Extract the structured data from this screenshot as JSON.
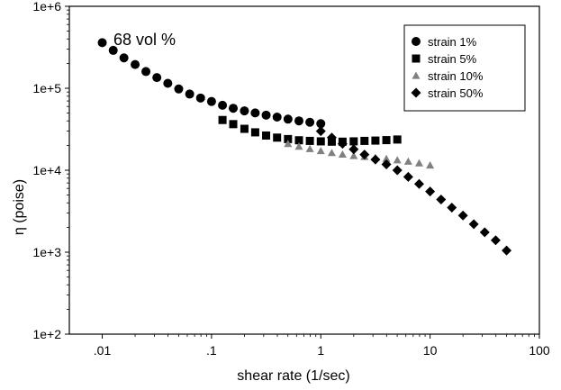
{
  "chart_data": {
    "type": "scatter",
    "xscale": "log",
    "yscale": "log",
    "xlim": [
      0.005,
      100
    ],
    "ylim": [
      100,
      1000000
    ],
    "xlabel": "shear rate (1/sec)",
    "ylabel": "η  (poise)",
    "annotation": "68  vol  %",
    "x_ticks": [
      0.01,
      0.1,
      1,
      10,
      100
    ],
    "x_tick_labels": [
      ".01",
      ".1",
      "1",
      "10",
      "100"
    ],
    "y_ticks": [
      100,
      1000,
      10000,
      100000,
      1000000
    ],
    "y_tick_labels": [
      "1e+2",
      "1e+3",
      "1e+4",
      "1e+5",
      "1e+6"
    ],
    "grid": false,
    "legend_position": "top-right",
    "series": [
      {
        "name": "strain 1%",
        "marker": "circle",
        "color": "#000000",
        "x": [
          0.01,
          0.0126,
          0.0158,
          0.02,
          0.0251,
          0.0316,
          0.0398,
          0.0501,
          0.0631,
          0.0794,
          0.1,
          0.126,
          0.158,
          0.2,
          0.251,
          0.316,
          0.398,
          0.501,
          0.631,
          0.794,
          1.0
        ],
        "y": [
          360000,
          290000,
          235000,
          195000,
          160000,
          135000,
          115000,
          98000,
          85000,
          76000,
          69000,
          62000,
          57000,
          53000,
          50000,
          47000,
          44500,
          42000,
          40000,
          38500,
          37000
        ]
      },
      {
        "name": "strain 5%",
        "marker": "square",
        "color": "#000000",
        "x": [
          0.126,
          0.158,
          0.2,
          0.251,
          0.316,
          0.398,
          0.501,
          0.631,
          0.794,
          1.0,
          1.26,
          1.58,
          2.0,
          2.51,
          3.16,
          3.98,
          5.01
        ],
        "y": [
          41000,
          36500,
          32000,
          29000,
          26500,
          25000,
          24000,
          23200,
          22800,
          22500,
          22300,
          22300,
          22500,
          22800,
          23000,
          23300,
          23700
        ]
      },
      {
        "name": "strain 10%",
        "marker": "triangle",
        "color": "#808080",
        "x": [
          0.501,
          0.631,
          0.794,
          1.0,
          1.26,
          1.58,
          2.0,
          2.51,
          3.16,
          3.98,
          5.01,
          6.31,
          7.94,
          10.0
        ],
        "y": [
          21000,
          19500,
          18200,
          17200,
          16300,
          15600,
          15000,
          14600,
          14200,
          13800,
          13300,
          12800,
          12200,
          11500
        ]
      },
      {
        "name": "strain 50%",
        "marker": "diamond",
        "color": "#000000",
        "x": [
          1.0,
          1.26,
          1.58,
          2.0,
          2.51,
          3.16,
          3.98,
          5.01,
          6.31,
          7.94,
          10.0,
          12.6,
          15.8,
          20.0,
          25.1,
          31.6,
          39.8,
          50.1
        ],
        "y": [
          30000,
          25000,
          21000,
          18000,
          15500,
          13500,
          11800,
          10000,
          8300,
          6800,
          5500,
          4400,
          3500,
          2800,
          2200,
          1750,
          1400,
          1050
        ]
      }
    ]
  }
}
